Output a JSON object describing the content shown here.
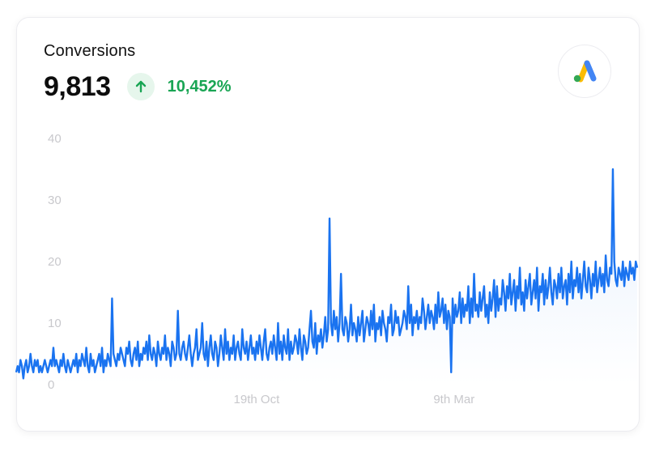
{
  "widget": {
    "title": "Conversions",
    "value": "9,813",
    "trend": "10,452%",
    "trend_direction": "up",
    "trend_color": "#19a554",
    "trend_icon": "arrow-up-icon",
    "logo_icon": "google-ads-logo"
  },
  "chart_data": {
    "type": "line",
    "title": "",
    "xlabel": "",
    "ylabel": "",
    "ylim": [
      0,
      40
    ],
    "y_ticks": [
      "0",
      "10",
      "20",
      "30",
      "40"
    ],
    "x_tick_labels": [
      {
        "label": "19th Oct",
        "index": 168
      },
      {
        "label": "9th Mar",
        "index": 306
      }
    ],
    "grid": false,
    "line_color": "#1a73f0",
    "series": [
      {
        "values": [
          2,
          3,
          2,
          4,
          3,
          1,
          3,
          4,
          2,
          3,
          5,
          3,
          2,
          4,
          3,
          4,
          2,
          3,
          2,
          3,
          4,
          3,
          2,
          3,
          4,
          3,
          6,
          3,
          4,
          3,
          2,
          4,
          3,
          5,
          3,
          2,
          4,
          3,
          2,
          3,
          4,
          3,
          5,
          2,
          4,
          3,
          5,
          4,
          3,
          6,
          3,
          2,
          5,
          3,
          4,
          2,
          3,
          4,
          5,
          3,
          6,
          2,
          4,
          3,
          5,
          4,
          3,
          14,
          5,
          4,
          3,
          5,
          4,
          6,
          5,
          4,
          3,
          6,
          5,
          7,
          4,
          3,
          5,
          6,
          4,
          7,
          3,
          5,
          4,
          6,
          5,
          7,
          4,
          8,
          5,
          4,
          6,
          5,
          3,
          7,
          5,
          4,
          6,
          5,
          8,
          4,
          6,
          5,
          3,
          7,
          6,
          4,
          5,
          12,
          5,
          4,
          6,
          7,
          5,
          4,
          6,
          8,
          5,
          3,
          5,
          6,
          9,
          4,
          5,
          6,
          10,
          5,
          4,
          7,
          3,
          6,
          8,
          5,
          4,
          7,
          6,
          3,
          5,
          8,
          6,
          4,
          9,
          5,
          7,
          4,
          6,
          5,
          8,
          4,
          6,
          7,
          5,
          4,
          9,
          6,
          5,
          7,
          4,
          6,
          8,
          5,
          6,
          4,
          7,
          5,
          8,
          6,
          4,
          7,
          9,
          5,
          4,
          6,
          7,
          5,
          8,
          6,
          4,
          10,
          5,
          7,
          4,
          8,
          6,
          5,
          9,
          4,
          7,
          5,
          6,
          8,
          7,
          5,
          9,
          6,
          4,
          8,
          7,
          5,
          6,
          9,
          12,
          7,
          6,
          10,
          5,
          8,
          7,
          9,
          6,
          8,
          11,
          7,
          9,
          27,
          10,
          8,
          12,
          9,
          11,
          7,
          10,
          18,
          9,
          8,
          11,
          10,
          7,
          9,
          13,
          8,
          10,
          9,
          7,
          11,
          8,
          10,
          12,
          7,
          9,
          11,
          10,
          8,
          12,
          9,
          13,
          7,
          10,
          9,
          11,
          8,
          12,
          10,
          9,
          7,
          11,
          10,
          13,
          8,
          9,
          12,
          10,
          11,
          8,
          9,
          10,
          12,
          11,
          9,
          16,
          10,
          13,
          8,
          11,
          10,
          12,
          9,
          11,
          10,
          14,
          12,
          9,
          11,
          13,
          10,
          12,
          11,
          9,
          13,
          10,
          15,
          11,
          12,
          14,
          10,
          13,
          9,
          12,
          11,
          2,
          14,
          10,
          13,
          11,
          12,
          15,
          10,
          14,
          11,
          13,
          12,
          16,
          10,
          14,
          11,
          18,
          12,
          13,
          11,
          15,
          12,
          14,
          16,
          11,
          13,
          10,
          15,
          12,
          14,
          17,
          11,
          16,
          12,
          14,
          13,
          17,
          15,
          12,
          16,
          14,
          18,
          13,
          15,
          17,
          12,
          16,
          14,
          19,
          13,
          15,
          12,
          17,
          14,
          16,
          18,
          13,
          15,
          17,
          14,
          19,
          12,
          16,
          15,
          18,
          13,
          17,
          14,
          16,
          19,
          15,
          13,
          17,
          16,
          14,
          18,
          15,
          19,
          14,
          16,
          17,
          13,
          18,
          15,
          20,
          14,
          17,
          16,
          19,
          15,
          18,
          14,
          17,
          20,
          16,
          15,
          19,
          17,
          14,
          18,
          16,
          20,
          15,
          17,
          19,
          16,
          18,
          15,
          21,
          17,
          16,
          19,
          18,
          35,
          20,
          17,
          16,
          19,
          18,
          17,
          20,
          16,
          19,
          18,
          17,
          20,
          18,
          19,
          17,
          20,
          19
        ]
      }
    ]
  }
}
